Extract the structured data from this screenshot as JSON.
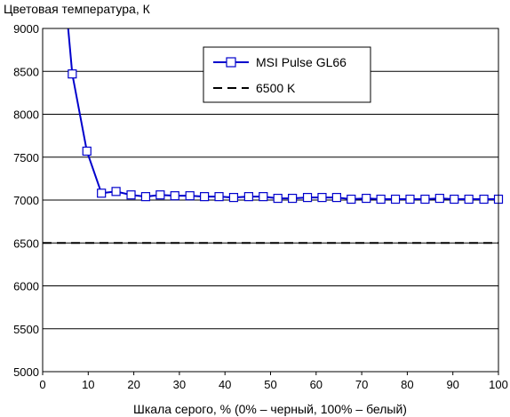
{
  "chart_data": {
    "type": "line",
    "ylabel": "Цветовая температура, К",
    "xlabel": "Шкала серого, % (0% – черный, 100% – белый)",
    "xlim": [
      0,
      100
    ],
    "ylim": [
      5000,
      9000
    ],
    "xticks": [
      0,
      10,
      20,
      30,
      40,
      50,
      60,
      70,
      80,
      90,
      100
    ],
    "yticks": [
      5000,
      5500,
      6000,
      6500,
      7000,
      7500,
      8000,
      8500,
      9000
    ],
    "grid": "horizontal",
    "legend_position": "top-right",
    "series": [
      {
        "name": "MSI Pulse GL66",
        "color": "#0000cc",
        "marker": "square",
        "x": [
          6.5,
          9.7,
          12.9,
          16.1,
          19.4,
          22.6,
          25.8,
          29.0,
          32.3,
          35.5,
          38.7,
          41.9,
          45.2,
          48.4,
          51.6,
          54.8,
          58.1,
          61.3,
          64.5,
          67.7,
          71.0,
          74.2,
          77.4,
          80.6,
          83.9,
          87.1,
          90.3,
          93.5,
          96.8,
          100.0
        ],
        "y": [
          8470,
          7570,
          7080,
          7100,
          7060,
          7040,
          7060,
          7050,
          7050,
          7040,
          7040,
          7030,
          7040,
          7040,
          7020,
          7020,
          7030,
          7030,
          7030,
          7010,
          7020,
          7010,
          7010,
          7010,
          7010,
          7020,
          7010,
          7010,
          7010,
          7010
        ],
        "line_start": {
          "x": 5.6,
          "y": 9000
        }
      },
      {
        "name": "6500 K",
        "color": "#000000",
        "style": "dashed",
        "x": [
          0,
          100
        ],
        "y": [
          6500,
          6500
        ]
      }
    ]
  }
}
